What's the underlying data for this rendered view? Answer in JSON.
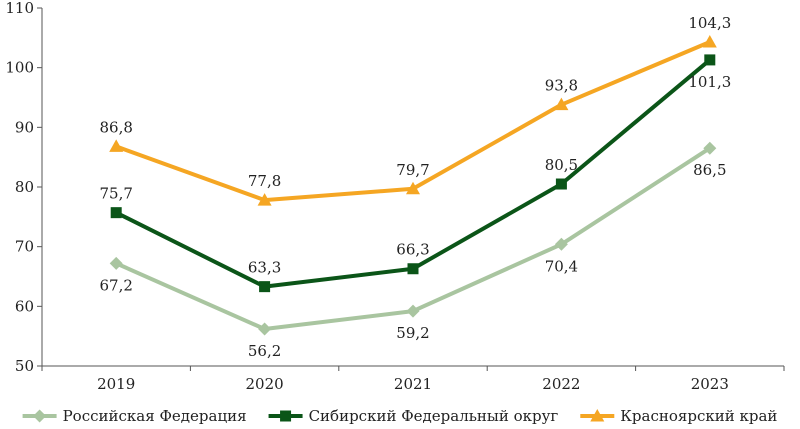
{
  "chart_data": {
    "type": "line",
    "title": "",
    "xlabel": "",
    "ylabel": "",
    "categories": [
      "2019",
      "2020",
      "2021",
      "2022",
      "2023"
    ],
    "ylim": [
      50,
      110
    ],
    "yticks": [
      50,
      60,
      70,
      80,
      90,
      100,
      110
    ],
    "grid": false,
    "legend_position": "bottom",
    "series": [
      {
        "name": "Российская Федерация",
        "values": [
          67.2,
          56.2,
          59.2,
          70.4,
          86.5
        ],
        "labels": [
          "67,2",
          "56,2",
          "59,2",
          "70,4",
          "86,5"
        ],
        "color": "#a9c5a0",
        "marker": "diamond",
        "label_position": [
          "below",
          "below",
          "below",
          "below",
          "below"
        ]
      },
      {
        "name": "Сибирский Федеральный округ",
        "values": [
          75.7,
          63.3,
          66.3,
          80.5,
          101.3
        ],
        "labels": [
          "75,7",
          "63,3",
          "66,3",
          "80,5",
          "101,3"
        ],
        "color": "#0b5518",
        "marker": "square",
        "label_position": [
          "above",
          "above",
          "above",
          "above",
          "below"
        ]
      },
      {
        "name": "Красноярский край",
        "values": [
          86.8,
          77.8,
          79.7,
          93.8,
          104.3
        ],
        "labels": [
          "86,8",
          "77,8",
          "79,7",
          "93,8",
          "104,3"
        ],
        "color": "#f5a623",
        "marker": "triangle",
        "label_position": [
          "above",
          "above",
          "above",
          "above",
          "above"
        ]
      }
    ]
  }
}
